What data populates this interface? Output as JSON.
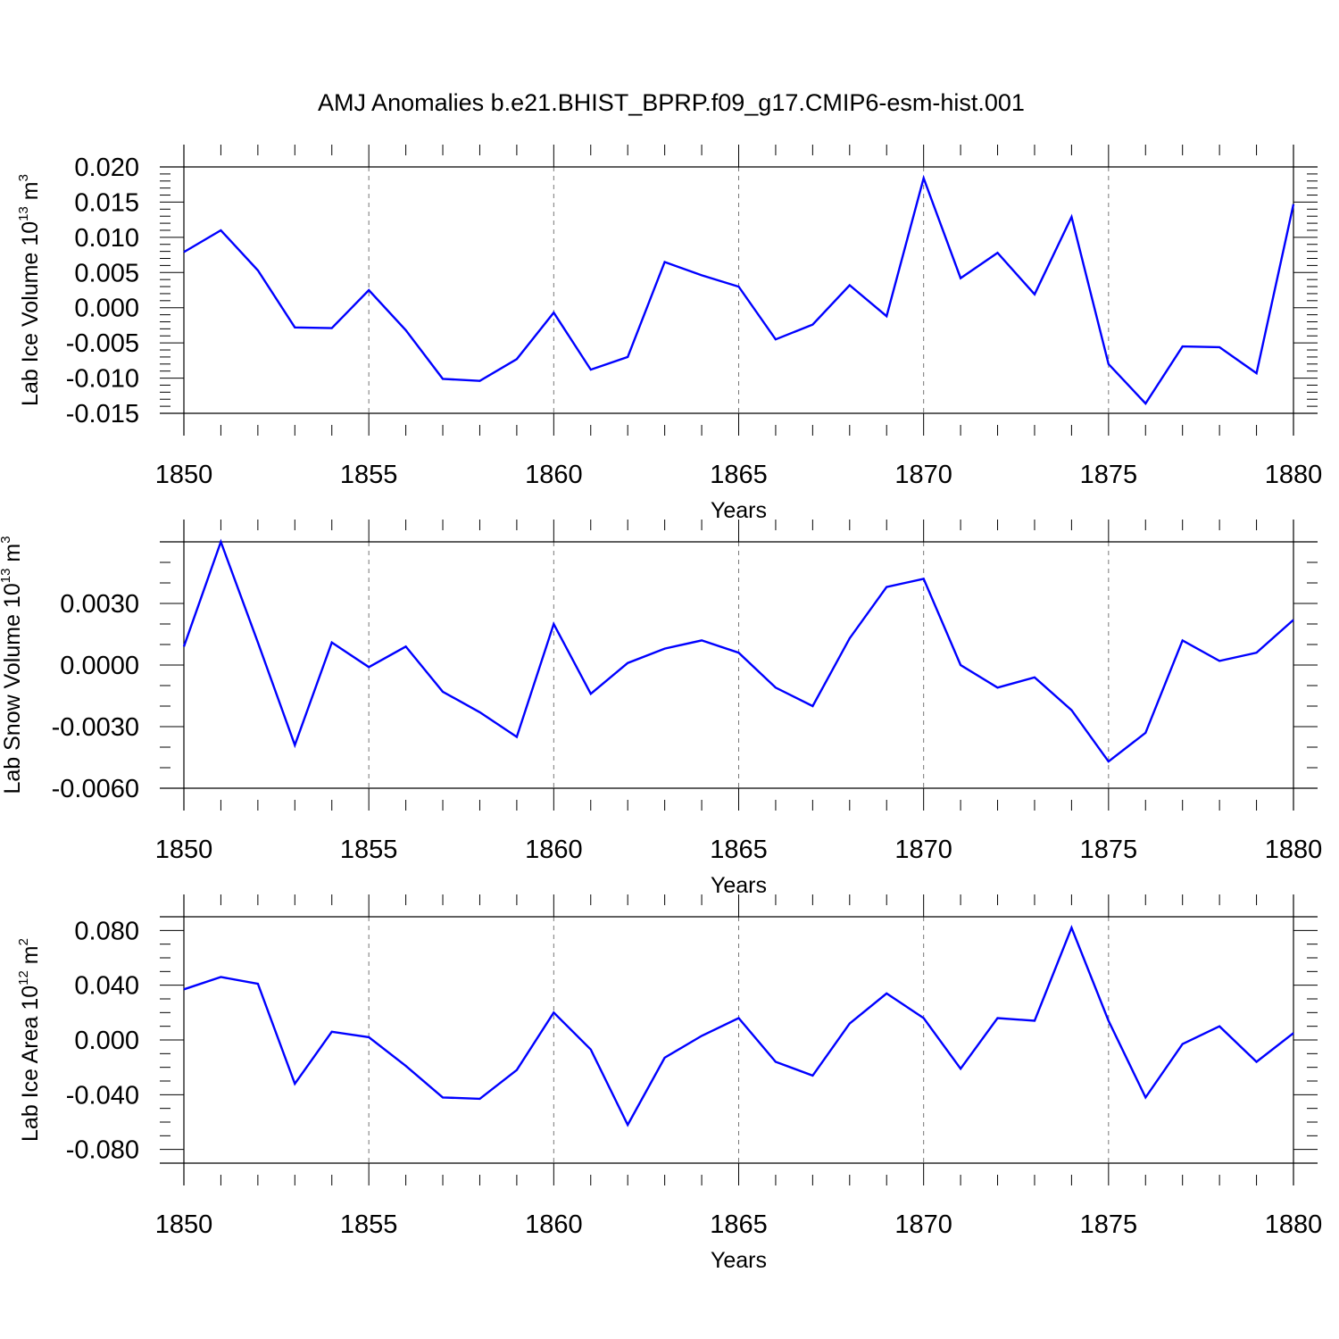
{
  "figure": {
    "title": "AMJ Anomalies b.e21.BHIST_BPRP.f09_g17.CMIP6-esm-hist.001",
    "line_color": "#0000ff"
  },
  "chart_data": [
    {
      "type": "line",
      "ylabel": "Lab Ice Volume 10",
      "ylabel_exp": "13",
      "ylabel_unit": "m",
      "ylabel_unit_exp": "3",
      "xlabel": "Years",
      "xlim": [
        1850,
        1880
      ],
      "ylim": [
        -0.015,
        0.02
      ],
      "x_ticks": [
        1850,
        1855,
        1860,
        1865,
        1870,
        1875,
        1880
      ],
      "y_ticks": [
        0.02,
        0.015,
        0.01,
        0.005,
        0.0,
        -0.005,
        -0.01,
        -0.015
      ],
      "y_tick_labels": [
        "0.020",
        "0.015",
        "0.010",
        "0.005",
        "0.000",
        "-0.005",
        "-0.010",
        "-0.015"
      ],
      "y_minor_step": 0.001,
      "x": [
        1850,
        1851,
        1852,
        1853,
        1854,
        1855,
        1856,
        1857,
        1858,
        1859,
        1860,
        1861,
        1862,
        1863,
        1864,
        1865,
        1866,
        1867,
        1868,
        1869,
        1870,
        1871,
        1872,
        1873,
        1874,
        1875,
        1876,
        1877,
        1878,
        1879,
        1880
      ],
      "values": [
        0.0079,
        0.011,
        0.0053,
        -0.0028,
        -0.0029,
        0.0025,
        -0.0032,
        -0.0101,
        -0.0104,
        -0.0073,
        -0.0007,
        -0.0088,
        -0.007,
        0.0065,
        0.0046,
        0.003,
        -0.0045,
        -0.0024,
        0.0032,
        -0.0012,
        0.0184,
        0.0042,
        0.0078,
        0.0019,
        0.0129,
        -0.008,
        -0.0136,
        -0.0055,
        -0.0056,
        -0.0093,
        0.0147
      ]
    },
    {
      "type": "line",
      "ylabel": "Lab Snow Volume 10",
      "ylabel_exp": "13",
      "ylabel_unit": "m",
      "ylabel_unit_exp": "3",
      "xlabel": "Years",
      "xlim": [
        1850,
        1880
      ],
      "ylim": [
        -0.006,
        0.006
      ],
      "x_ticks": [
        1850,
        1855,
        1860,
        1865,
        1870,
        1875,
        1880
      ],
      "y_ticks": [
        0.003,
        0.0,
        -0.003,
        -0.006
      ],
      "y_tick_labels": [
        "0.0030",
        "0.0000",
        "-0.0030",
        "-0.0060"
      ],
      "y_minor_step": 0.001,
      "x": [
        1850,
        1851,
        1852,
        1853,
        1854,
        1855,
        1856,
        1857,
        1858,
        1859,
        1860,
        1861,
        1862,
        1863,
        1864,
        1865,
        1866,
        1867,
        1868,
        1869,
        1870,
        1871,
        1872,
        1873,
        1874,
        1875,
        1876,
        1877,
        1878,
        1879,
        1880
      ],
      "values": [
        0.0009,
        0.006,
        0.0011,
        -0.0039,
        0.0011,
        -0.0001,
        0.0009,
        -0.0013,
        -0.0023,
        -0.0035,
        0.002,
        -0.0014,
        0.0001,
        0.0008,
        0.0012,
        0.0006,
        -0.0011,
        -0.002,
        0.0013,
        0.0038,
        0.0042,
        0.0,
        -0.0011,
        -0.0006,
        -0.0022,
        -0.0047,
        -0.0033,
        0.0012,
        0.0002,
        0.0006,
        0.0022
      ]
    },
    {
      "type": "line",
      "ylabel": "Lab Ice Area 10",
      "ylabel_exp": "12",
      "ylabel_unit": "m",
      "ylabel_unit_exp": "2",
      "xlabel": "Years",
      "xlim": [
        1850,
        1880
      ],
      "ylim": [
        -0.09,
        0.09
      ],
      "x_ticks": [
        1850,
        1855,
        1860,
        1865,
        1870,
        1875,
        1880
      ],
      "y_ticks": [
        0.08,
        0.04,
        0.0,
        -0.04,
        -0.08
      ],
      "y_tick_labels": [
        "0.080",
        "0.040",
        "0.000",
        "-0.040",
        "-0.080"
      ],
      "y_minor_step": 0.01,
      "x": [
        1850,
        1851,
        1852,
        1853,
        1854,
        1855,
        1856,
        1857,
        1858,
        1859,
        1860,
        1861,
        1862,
        1863,
        1864,
        1865,
        1866,
        1867,
        1868,
        1869,
        1870,
        1871,
        1872,
        1873,
        1874,
        1875,
        1876,
        1877,
        1878,
        1879,
        1880
      ],
      "values": [
        0.037,
        0.046,
        0.041,
        -0.032,
        0.006,
        0.002,
        -0.019,
        -0.042,
        -0.043,
        -0.022,
        0.02,
        -0.007,
        -0.062,
        -0.013,
        0.003,
        0.016,
        -0.016,
        -0.026,
        0.012,
        0.034,
        0.016,
        -0.021,
        0.016,
        0.014,
        0.082,
        0.014,
        -0.042,
        -0.003,
        0.01,
        -0.016,
        0.005
      ]
    }
  ]
}
